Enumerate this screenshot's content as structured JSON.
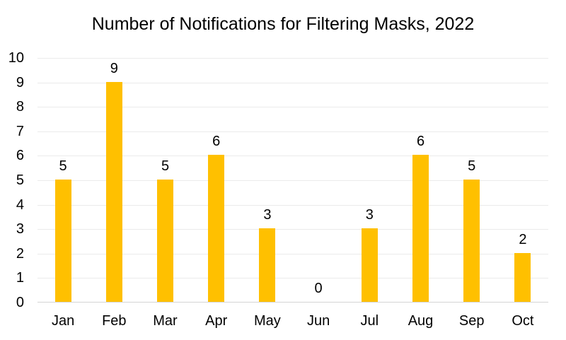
{
  "chart_data": {
    "type": "bar",
    "title": "Number of Notifications for Filtering Masks, 2022",
    "categories": [
      "Jan",
      "Feb",
      "Mar",
      "Apr",
      "May",
      "Jun",
      "Jul",
      "Aug",
      "Sep",
      "Oct"
    ],
    "values": [
      5,
      9,
      5,
      6,
      3,
      0,
      3,
      6,
      5,
      2
    ],
    "xlabel": "",
    "ylabel": "",
    "ylim": [
      0,
      10
    ],
    "ytick_step": 1,
    "yticks": [
      0,
      1,
      2,
      3,
      4,
      5,
      6,
      7,
      8,
      9,
      10
    ],
    "grid": true,
    "legend": false,
    "data_labels": true,
    "colors": {
      "bar": "#FFC000",
      "gridline": "#EBEBEB",
      "axis_line": "#D4D4D4",
      "text": "#000000",
      "background": "#FFFFFF"
    }
  }
}
